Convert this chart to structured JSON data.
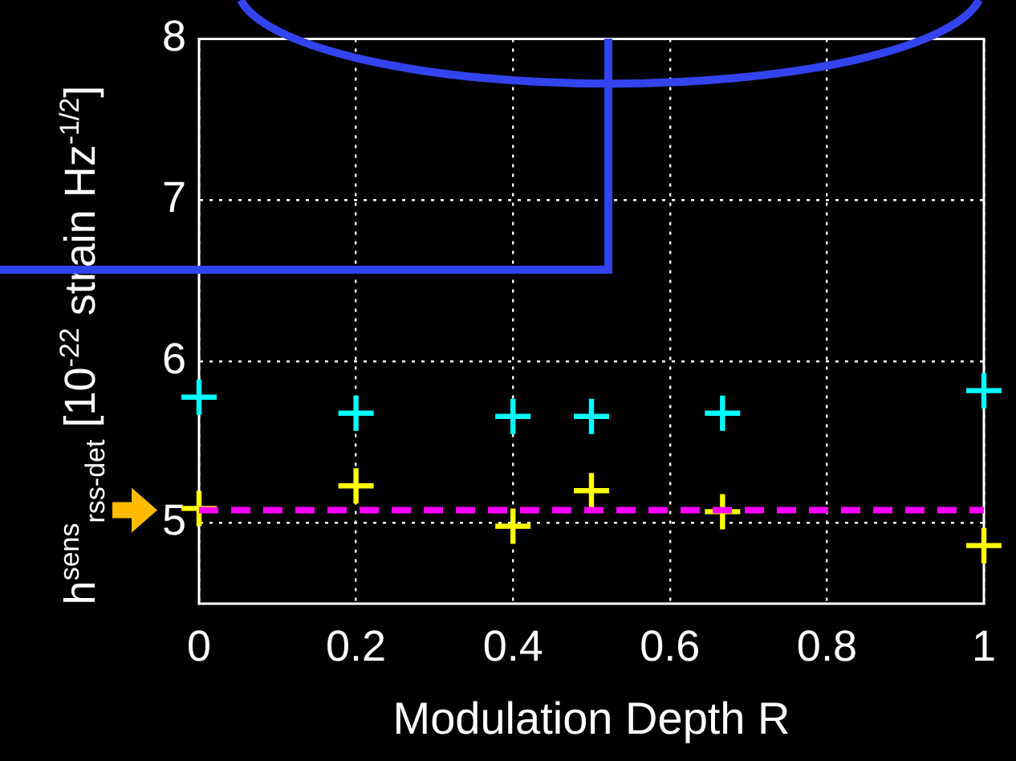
{
  "chart_data": {
    "type": "scatter",
    "xlabel": "Modulation Depth R",
    "ylabel": "h$^{sens}$$_{rss-det}$ [10$^{-22}$ strain Hz$^{-1/2}$]",
    "xlim": [
      0,
      1
    ],
    "ylim": [
      4.5,
      8
    ],
    "xticks": [
      0,
      0.2,
      0.4,
      0.6,
      0.8,
      1
    ],
    "yticks": [
      5,
      6,
      7,
      8
    ],
    "grid": true,
    "legend": false,
    "marker": "cross",
    "series": [
      {
        "color": "#00ffff",
        "x": [
          0,
          0.2,
          0.4,
          0.5,
          0.667,
          1
        ],
        "values": [
          5.78,
          5.68,
          5.66,
          5.66,
          5.68,
          5.82
        ]
      },
      {
        "color": "#ffff00",
        "x": [
          0,
          0.2,
          0.4,
          0.5,
          0.667,
          1
        ],
        "values": [
          5.09,
          5.23,
          4.98,
          5.2,
          5.07,
          4.86
        ]
      }
    ],
    "ref_lines": [
      {
        "axis": "y",
        "value": 5.08,
        "color": "#ff00ff",
        "line_style": "dashed"
      }
    ]
  }
}
